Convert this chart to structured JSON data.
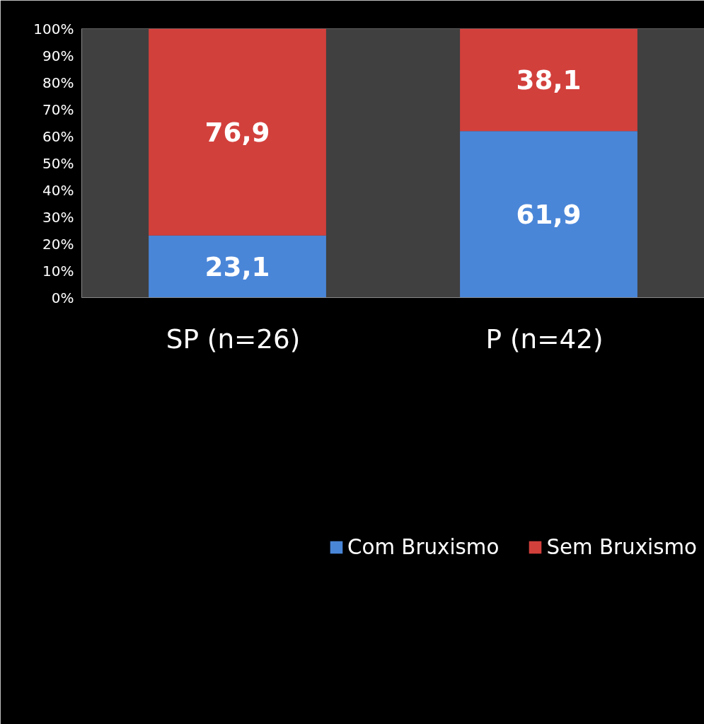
{
  "chart_data": {
    "type": "bar",
    "stacked": true,
    "categories": [
      "SP  (n=26)",
      "P  (n=42)"
    ],
    "series": [
      {
        "name": "Com Bruxismo",
        "color": "#4a86d8",
        "values": [
          23.1,
          61.9
        ],
        "value_labels": [
          "23,1",
          "61,9"
        ]
      },
      {
        "name": "Sem Bruxismo",
        "color": "#d2403c",
        "values": [
          76.9,
          38.1
        ],
        "value_labels": [
          "76,9",
          "38,1"
        ]
      }
    ],
    "ylim": [
      0,
      100
    ],
    "yticks": [
      {
        "value": 0,
        "label": "0%"
      },
      {
        "value": 10,
        "label": "10%"
      },
      {
        "value": 20,
        "label": "20%"
      },
      {
        "value": 30,
        "label": "30%"
      },
      {
        "value": 40,
        "label": "40%"
      },
      {
        "value": 50,
        "label": "50%"
      },
      {
        "value": 60,
        "label": "60%"
      },
      {
        "value": 70,
        "label": "70%"
      },
      {
        "value": 80,
        "label": "80%"
      },
      {
        "value": 90,
        "label": "90%"
      },
      {
        "value": 100,
        "label": "100%"
      }
    ],
    "grid": false,
    "legend": "bottom"
  }
}
